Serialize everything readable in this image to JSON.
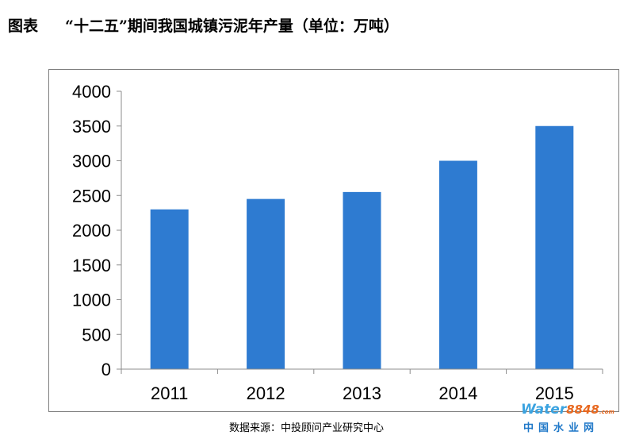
{
  "title": {
    "prefix": "图表",
    "main": "“十二五”期间我国城镇污泥年产量（单位：万吨）"
  },
  "source": "数据来源：中投顾问产业研究中心",
  "watermark": {
    "brand": "Water",
    "brand_num": "8848",
    "brand_suffix": ".com",
    "cn": "中国水业网"
  },
  "colors": {
    "bar": "#2e7bd1",
    "axis": "#8c8c8c",
    "frame": "#7f7f7f"
  },
  "chart_data": {
    "type": "bar",
    "categories": [
      "2011",
      "2012",
      "2013",
      "2014",
      "2015"
    ],
    "values": [
      2300,
      2450,
      2550,
      3000,
      3500
    ],
    "title": "“十二五”期间我国城镇污泥年产量（单位：万吨）",
    "xlabel": "",
    "ylabel": "",
    "ylim": [
      0,
      4000
    ],
    "yticks": [
      0,
      500,
      1000,
      1500,
      2000,
      2500,
      3000,
      3500,
      4000
    ],
    "grid": false,
    "legend": "none"
  }
}
